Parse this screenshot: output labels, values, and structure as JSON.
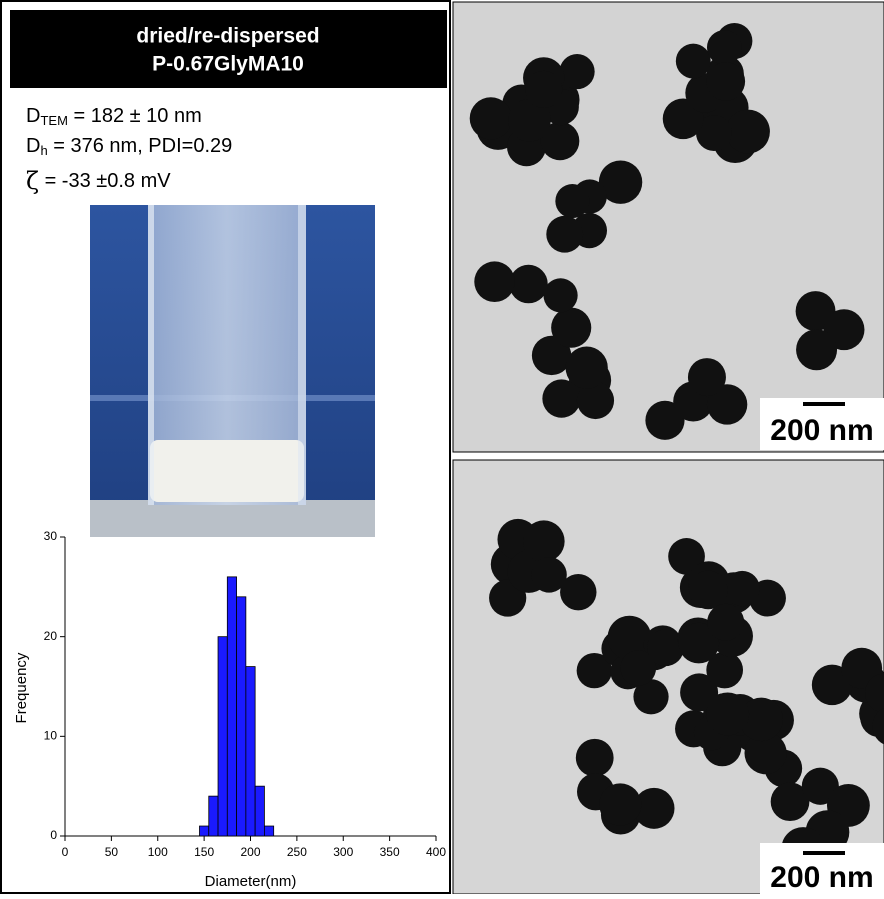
{
  "header": {
    "title": "dried/re-dispersed",
    "subtitle": "P-0.67GlyMA10"
  },
  "properties": [
    {
      "symbol": "D",
      "sub": "TEM",
      "text": " = 182 ± 10 nm"
    },
    {
      "symbol": "D",
      "sub": "h",
      "text": " = 376 nm, PDI=0.29"
    },
    {
      "symbol": "ζ",
      "text": " = -33 ±0.8 mV"
    }
  ],
  "scale_bars": [
    "200 nm",
    "200 nm"
  ],
  "chart_data": {
    "type": "histogram",
    "x_label": "Diameter(nm)",
    "y_label": "Frequency",
    "bins": [
      145,
      155,
      165,
      175,
      185,
      195,
      205,
      215,
      225
    ],
    "values": [
      1,
      4,
      20,
      26,
      24,
      17,
      5,
      1
    ],
    "color": "#1a1aff",
    "xlim": [
      0,
      400
    ],
    "xticks": [
      0,
      50,
      100,
      150,
      200,
      250,
      300,
      350,
      400
    ],
    "ylim": [
      0,
      30
    ],
    "yticks": [
      0,
      10,
      20,
      30
    ]
  }
}
